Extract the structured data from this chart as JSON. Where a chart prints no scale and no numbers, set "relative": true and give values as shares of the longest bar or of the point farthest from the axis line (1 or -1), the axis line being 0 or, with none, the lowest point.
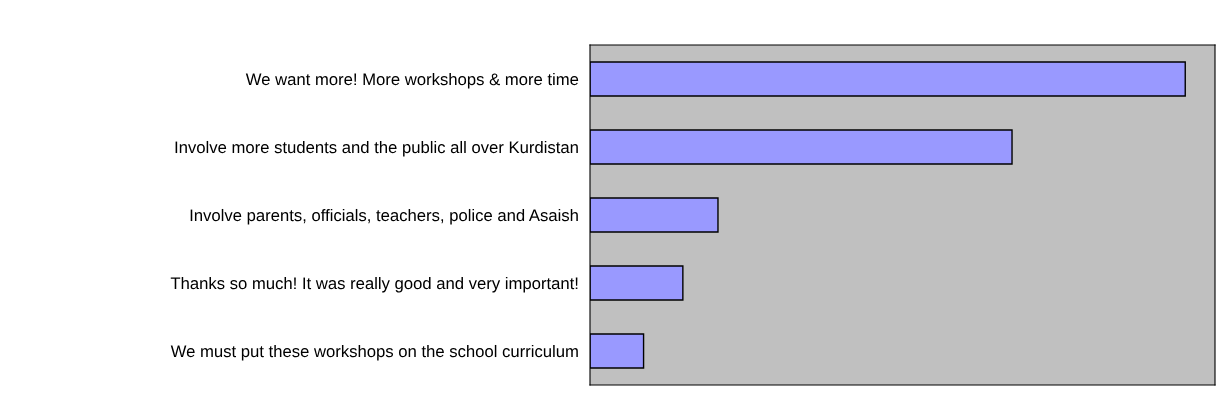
{
  "chart_data": {
    "type": "bar",
    "orientation": "horizontal",
    "relative": true,
    "categories": [
      "We want more! More workshops & more time",
      "Involve more students and the public all over Kurdistan",
      "Involve parents, officials, teachers, police and Asaish",
      "Thanks so much! It was really good and very important!",
      "We must put these workshops on the school curriculum"
    ],
    "values": [
      1,
      0.709,
      0.215,
      0.156,
      0.09
    ],
    "color": "#9999ff"
  }
}
